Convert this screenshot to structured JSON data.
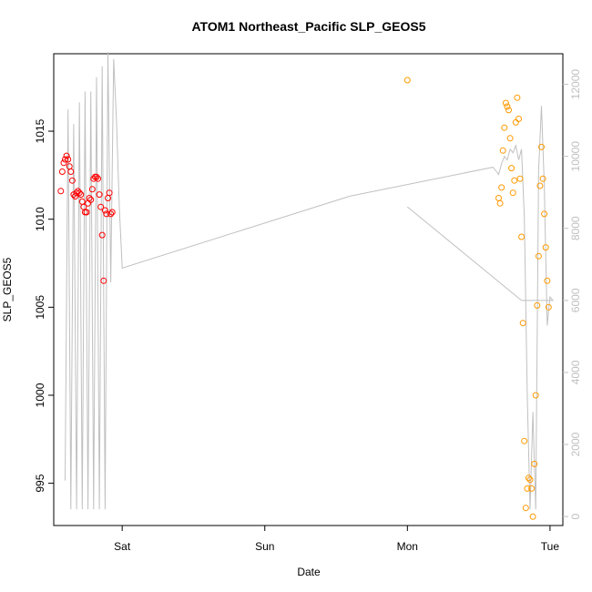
{
  "chart_data": {
    "type": "scatter",
    "title": "ATOM1 Northeast_Pacific SLP_GEOS5",
    "xlabel": "Date",
    "ylabel": "SLP_GEOS5",
    "x_ticks": [
      "Sat",
      "Sun",
      "Mon",
      "Tue"
    ],
    "x_tick_values": [
      1,
      2,
      3,
      4
    ],
    "xlim": [
      0.52,
      4.09
    ],
    "ylim": [
      992.6,
      1019.4
    ],
    "y_ticks": [
      995,
      1000,
      1005,
      1010,
      1015
    ],
    "y2_ticks": [
      0,
      2000,
      4000,
      6000,
      8000,
      10000,
      12000
    ],
    "y2lim": [
      -250,
      12850
    ],
    "colors": {
      "red": "#ff0000",
      "orange": "#ff9900",
      "depth": "#c0c0c0",
      "right_axis": "#c0c0c0"
    },
    "series": [
      {
        "color": "red",
        "x": [
          0.57,
          0.58,
          0.59,
          0.6,
          0.61,
          0.62,
          0.63,
          0.64,
          0.65,
          0.66,
          0.67,
          0.68,
          0.69,
          0.7,
          0.71,
          0.72,
          0.73,
          0.74,
          0.75,
          0.76,
          0.77,
          0.78,
          0.79,
          0.8,
          0.81,
          0.82,
          0.83,
          0.84,
          0.85,
          0.86,
          0.87,
          0.88,
          0.89,
          0.9,
          0.91,
          0.92,
          0.93
        ],
        "y": [
          1011.6,
          1012.7,
          1013.2,
          1013.4,
          1013.6,
          1013.4,
          1013.0,
          1012.7,
          1012.2,
          1011.4,
          1011.3,
          1011.5,
          1011.6,
          1011.5,
          1011.4,
          1011.0,
          1010.7,
          1010.4,
          1010.4,
          1010.9,
          1011.2,
          1011.1,
          1011.7,
          1012.3,
          1012.4,
          1012.4,
          1012.3,
          1011.4,
          1010.7,
          1009.1,
          1006.5,
          1010.5,
          1010.3,
          1011.2,
          1011.5,
          1010.3,
          1010.4
        ]
      },
      {
        "color": "orange",
        "x": [
          3.0,
          3.64,
          3.65,
          3.66,
          3.67,
          3.68,
          3.69,
          3.7,
          3.71,
          3.72,
          3.73,
          3.74,
          3.75,
          3.76,
          3.77,
          3.78,
          3.79,
          3.8,
          3.81,
          3.82,
          3.83,
          3.84,
          3.85,
          3.86,
          3.87,
          3.88,
          3.89,
          3.9,
          3.91,
          3.92,
          3.93,
          3.94,
          3.95,
          3.96,
          3.97,
          3.98,
          3.99
        ],
        "y": [
          1017.9,
          1011.2,
          1010.9,
          1011.8,
          1013.9,
          1015.2,
          1016.6,
          1016.4,
          1016.2,
          1014.6,
          1012.9,
          1011.5,
          1012.2,
          1015.5,
          1016.9,
          1015.7,
          1012.3,
          1009.0,
          1004.1,
          997.4,
          993.6,
          994.7,
          995.3,
          995.2,
          994.7,
          993.1,
          996.1,
          1000.0,
          1005.1,
          1007.9,
          1011.9,
          1014.1,
          1012.3,
          1010.3,
          1008.4,
          1006.5,
          1005.0
        ]
      }
    ],
    "depth_line": {
      "x": [
        0.6,
        0.62,
        0.64,
        0.66,
        0.68,
        0.7,
        0.72,
        0.74,
        0.76,
        0.78,
        0.8,
        0.82,
        0.84,
        0.86,
        0.88,
        0.9,
        0.92,
        0.94,
        0.96,
        0.98,
        1.0,
        2.6,
        3.6,
        3.62,
        3.64,
        3.66,
        3.68,
        3.7,
        3.72,
        3.74,
        3.76,
        3.78,
        3.8,
        3.82,
        3.84,
        3.86,
        3.88,
        3.9,
        3.92,
        3.94,
        3.96,
        3.98,
        4.0,
        4.02,
        3.8,
        3.4,
        3.0
      ],
      "y": [
        1000,
        11300,
        200,
        10900,
        200,
        11500,
        200,
        11800,
        200,
        11800,
        200,
        12200,
        200,
        12500,
        200,
        12900,
        6500,
        12700,
        11000,
        8600,
        6900,
        8900,
        9700,
        9600,
        9500,
        9800,
        10000,
        9900,
        10200,
        10100,
        10300,
        9900,
        10200,
        8300,
        3400,
        200,
        2900,
        200,
        9600,
        11400,
        9200,
        5300,
        6100,
        6000,
        6000,
        7300,
        8600
      ]
    }
  }
}
